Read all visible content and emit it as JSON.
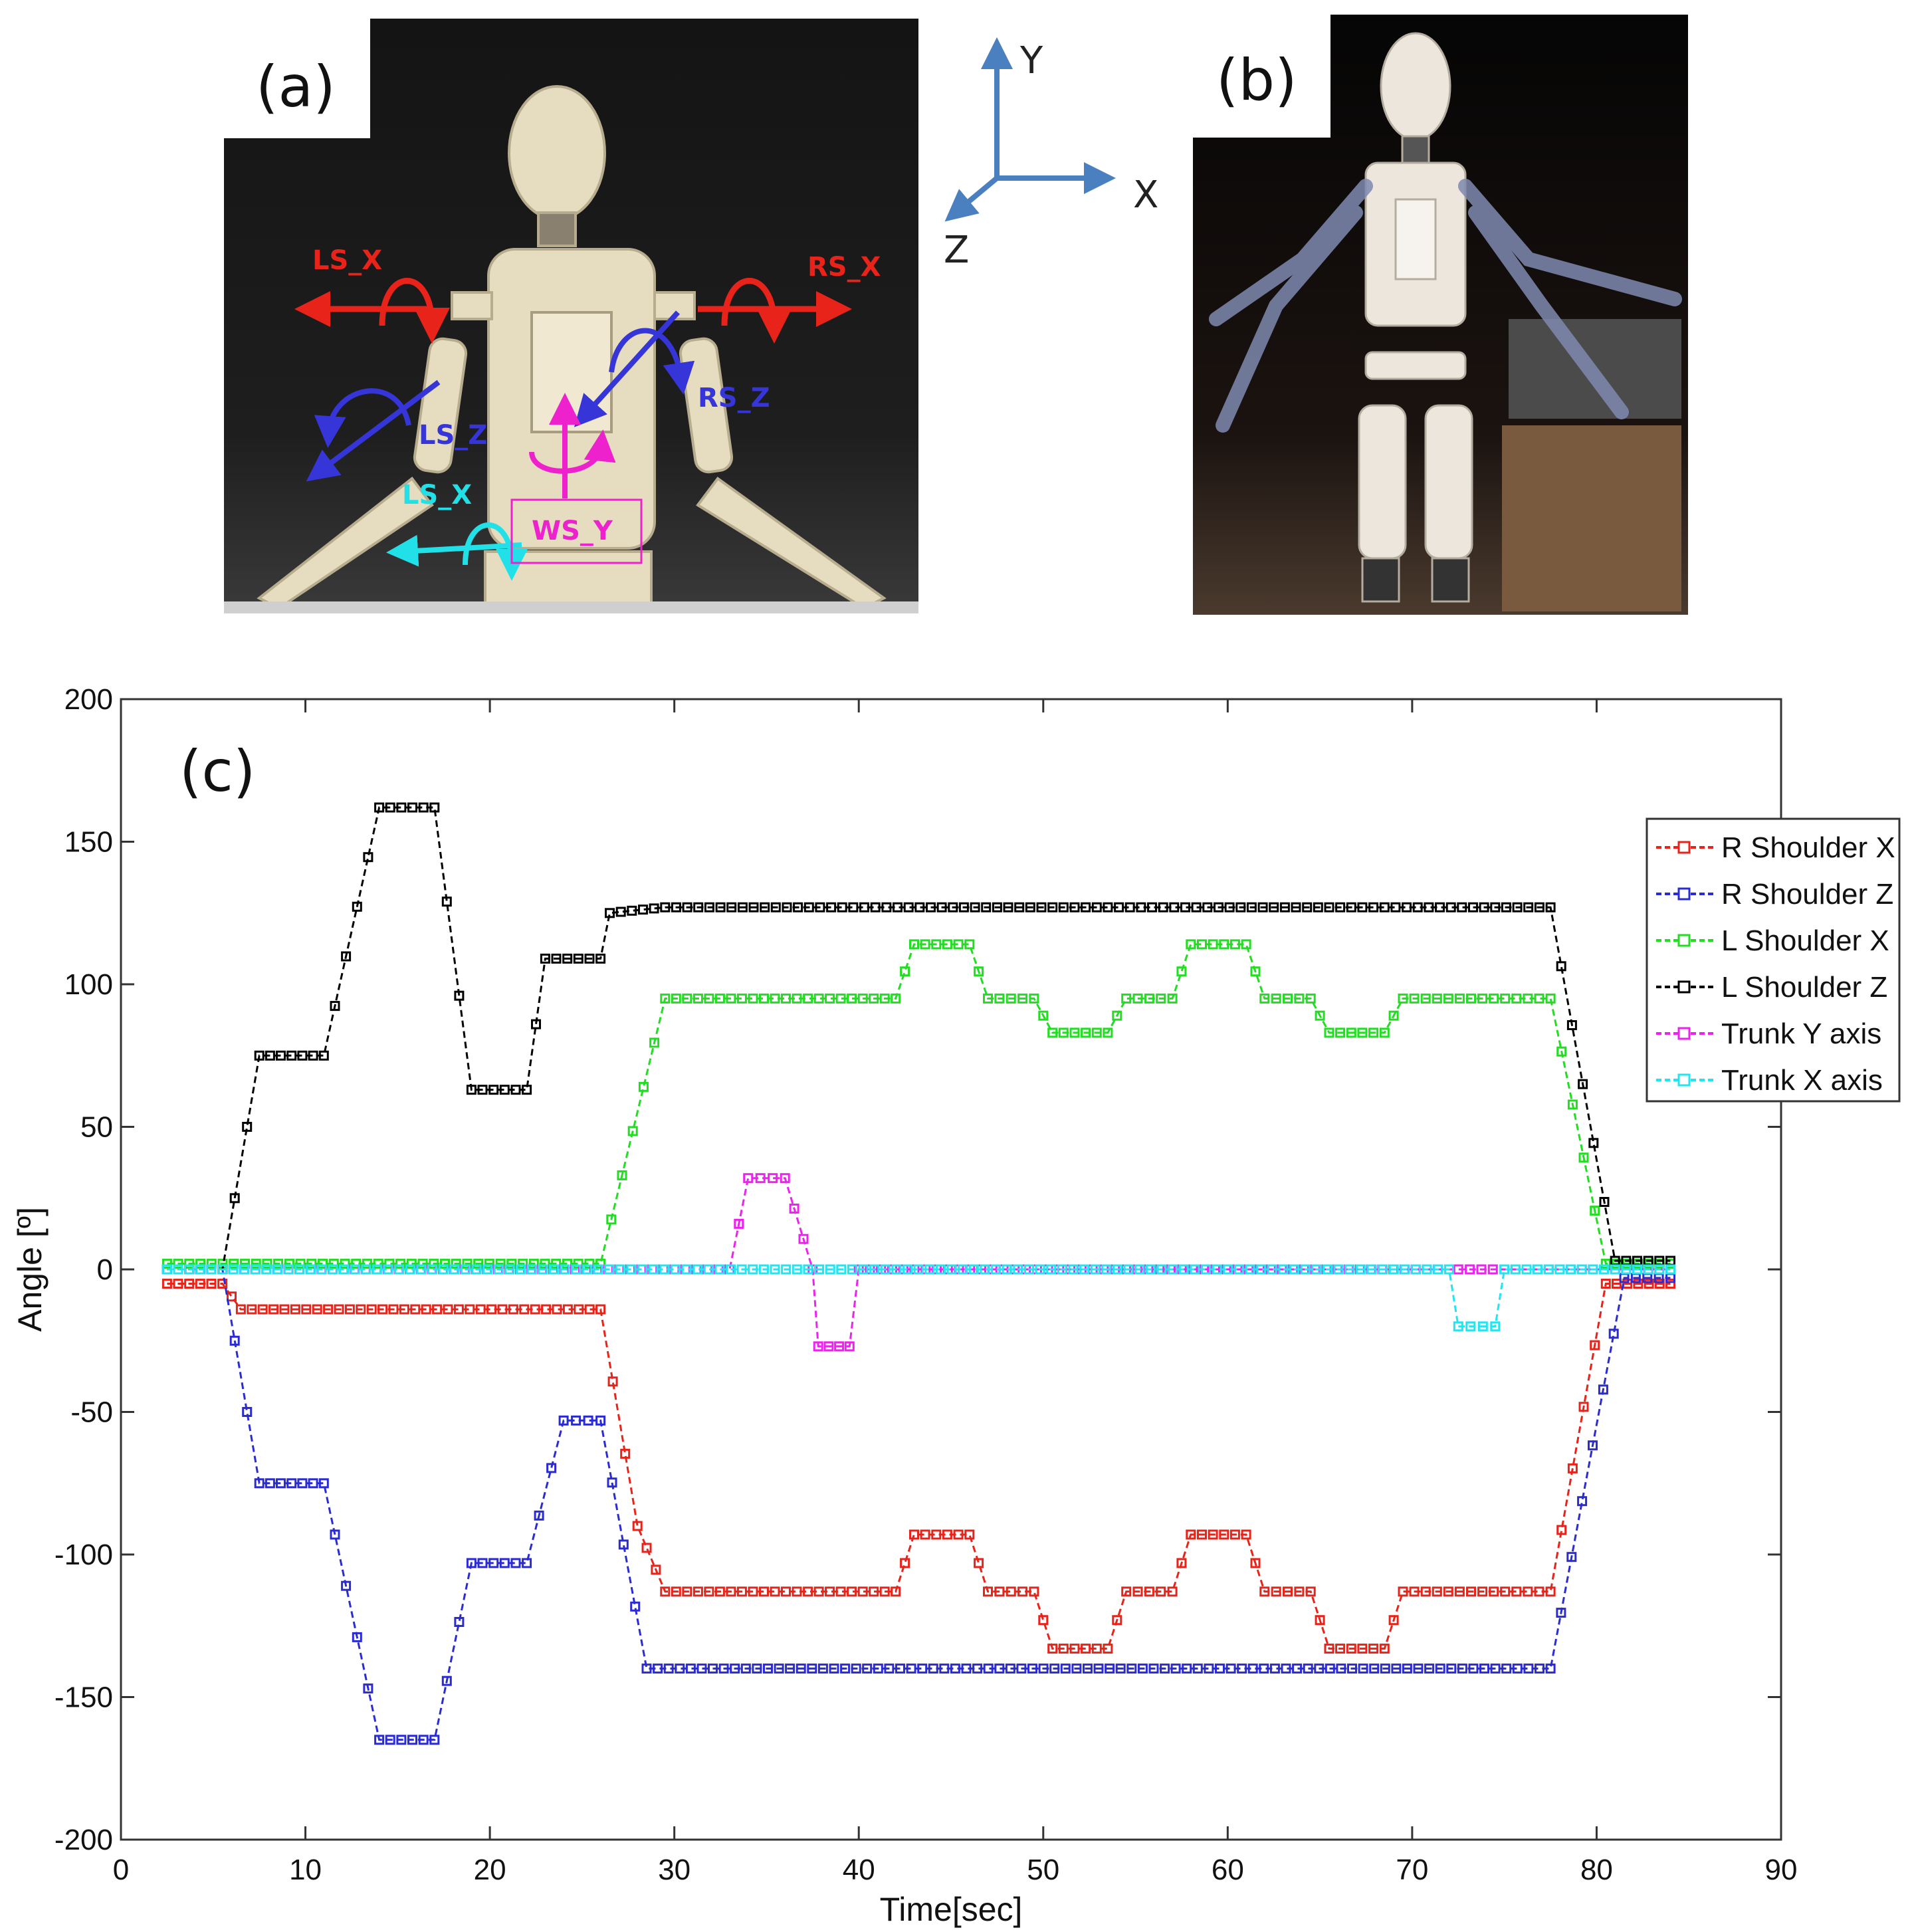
{
  "panels": {
    "a": {
      "label": "(a)",
      "annotations": {
        "ls_x_top": "LS_X",
        "rs_x": "RS_X",
        "rs_z": "RS_Z",
        "ls_z": "LS_Z",
        "ls_x_bottom": "LS_X",
        "ws_y": "WS_Y"
      }
    },
    "axes_diagram": {
      "y": "Y",
      "x": "X",
      "z": "Z"
    },
    "b": {
      "label": "(b)"
    },
    "c": {
      "label": "(c)"
    }
  },
  "colors": {
    "red": "#e8231a",
    "blue": "#2b2bd4",
    "green": "#22dd22",
    "black": "#000000",
    "magenta": "#ee22ee",
    "cyan": "#22e5f0",
    "arrow_blue": "#4a7fc0"
  },
  "chart_data": {
    "type": "line",
    "title": "",
    "xlabel": "Time[sec]",
    "ylabel": "Angle [º]",
    "xlim": [
      0,
      90
    ],
    "ylim": [
      -200,
      200
    ],
    "xticks": [
      0,
      10,
      20,
      30,
      40,
      50,
      60,
      70,
      80,
      90
    ],
    "yticks": [
      200,
      150,
      100,
      50,
      0,
      -50,
      -100,
      -150,
      -200
    ],
    "legend_position": "top-right",
    "marker": "square",
    "series": [
      {
        "name": "R Shoulder X",
        "color": "#e8231a",
        "points": [
          [
            2.5,
            -5
          ],
          [
            5.5,
            -5
          ],
          [
            6.5,
            -14
          ],
          [
            26,
            -14
          ],
          [
            28,
            -90
          ],
          [
            29.5,
            -113
          ],
          [
            42,
            -113
          ],
          [
            43,
            -93
          ],
          [
            46,
            -93
          ],
          [
            47,
            -113
          ],
          [
            49.5,
            -113
          ],
          [
            50.5,
            -133
          ],
          [
            53.5,
            -133
          ],
          [
            54.5,
            -113
          ],
          [
            57,
            -113
          ],
          [
            58,
            -93
          ],
          [
            61,
            -93
          ],
          [
            62,
            -113
          ],
          [
            64.5,
            -113
          ],
          [
            65.5,
            -133
          ],
          [
            68.5,
            -133
          ],
          [
            69.5,
            -113
          ],
          [
            77.5,
            -113
          ],
          [
            80.5,
            -5
          ],
          [
            84,
            -5
          ]
        ]
      },
      {
        "name": "R Shoulder Z",
        "color": "#2b2bd4",
        "points": [
          [
            2.5,
            0
          ],
          [
            5.5,
            0
          ],
          [
            7.5,
            -75
          ],
          [
            11,
            -75
          ],
          [
            14,
            -165
          ],
          [
            17,
            -165
          ],
          [
            19,
            -103
          ],
          [
            22,
            -103
          ],
          [
            24,
            -53
          ],
          [
            26,
            -53
          ],
          [
            28.5,
            -140
          ],
          [
            77.5,
            -140
          ],
          [
            81.5,
            -3
          ],
          [
            84,
            -3
          ]
        ]
      },
      {
        "name": "L Shoulder X",
        "color": "#22dd22",
        "points": [
          [
            2.5,
            2
          ],
          [
            26,
            2
          ],
          [
            29.5,
            95
          ],
          [
            42,
            95
          ],
          [
            43,
            114
          ],
          [
            46,
            114
          ],
          [
            47,
            95
          ],
          [
            49.5,
            95
          ],
          [
            50.5,
            83
          ],
          [
            53.5,
            83
          ],
          [
            54.5,
            95
          ],
          [
            57,
            95
          ],
          [
            58,
            114
          ],
          [
            61,
            114
          ],
          [
            62,
            95
          ],
          [
            64.5,
            95
          ],
          [
            65.5,
            83
          ],
          [
            68.5,
            83
          ],
          [
            69.5,
            95
          ],
          [
            77.5,
            95
          ],
          [
            80.5,
            2
          ],
          [
            84,
            2
          ]
        ]
      },
      {
        "name": "L Shoulder Z",
        "color": "#000000",
        "points": [
          [
            2.5,
            0
          ],
          [
            5.5,
            0
          ],
          [
            7.5,
            75
          ],
          [
            11,
            75
          ],
          [
            14,
            162
          ],
          [
            17,
            162
          ],
          [
            19,
            63
          ],
          [
            22,
            63
          ],
          [
            23,
            109
          ],
          [
            26,
            109
          ],
          [
            26.5,
            125
          ],
          [
            29.5,
            127
          ],
          [
            77.5,
            127
          ],
          [
            81,
            3
          ],
          [
            84,
            3
          ]
        ]
      },
      {
        "name": "Trunk Y axis",
        "color": "#ee22ee",
        "points": [
          [
            2.5,
            0
          ],
          [
            33,
            0
          ],
          [
            34,
            32
          ],
          [
            36,
            32
          ],
          [
            37.5,
            0
          ],
          [
            37.8,
            -27
          ],
          [
            39.5,
            -27
          ],
          [
            40,
            0
          ],
          [
            72,
            0
          ],
          [
            72.5,
            0
          ],
          [
            75,
            0
          ],
          [
            84,
            0
          ]
        ]
      },
      {
        "name": "Trunk X axis",
        "color": "#22e5f0",
        "points": [
          [
            2.5,
            0
          ],
          [
            72,
            0
          ],
          [
            72.5,
            -20
          ],
          [
            74.5,
            -20
          ],
          [
            75,
            0
          ],
          [
            84,
            0
          ]
        ]
      }
    ]
  }
}
